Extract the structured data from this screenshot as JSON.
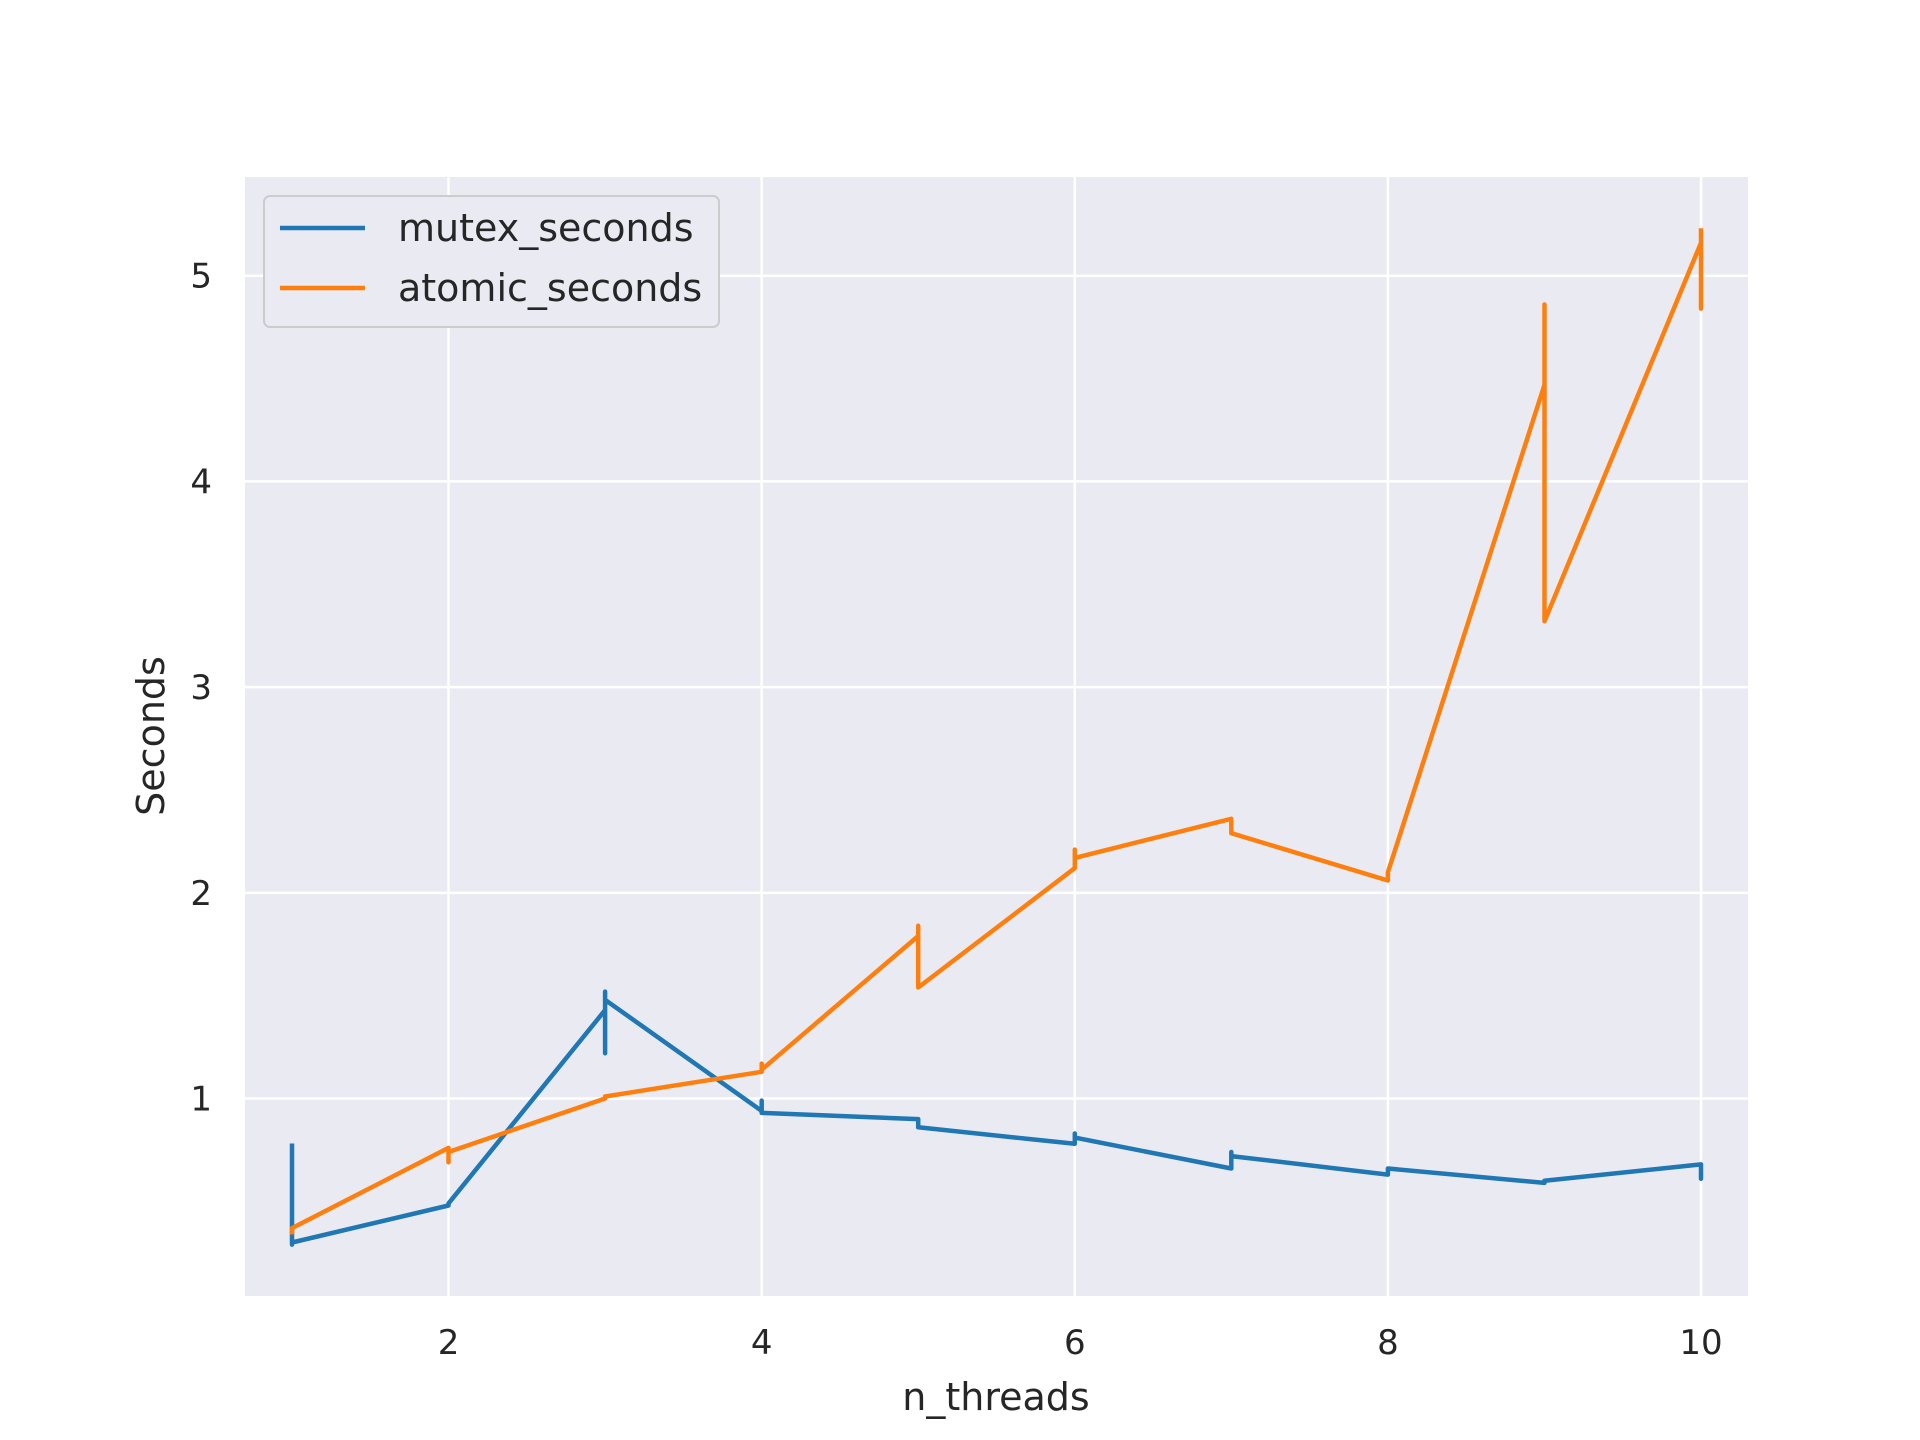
{
  "chart_data": {
    "type": "line",
    "title": "",
    "xlabel": "n_threads",
    "ylabel": "Seconds",
    "xlim": [
      0.7,
      10.3
    ],
    "ylim": [
      0.04,
      5.48
    ],
    "xticks": [
      2,
      4,
      6,
      8,
      10
    ],
    "yticks": [
      1,
      2,
      3,
      4,
      5
    ],
    "grid": true,
    "legend_position": "top-left",
    "series": [
      {
        "name": "mutex_seconds",
        "color": "#1f77b4",
        "x": [
          1,
          1,
          1,
          2,
          2,
          3,
          3,
          3,
          3,
          4,
          4,
          4,
          5,
          5,
          6,
          6,
          6,
          7,
          7,
          7,
          8,
          8,
          9,
          9,
          10,
          10,
          10
        ],
        "y": [
          0.77,
          0.29,
          0.3,
          0.48,
          0.49,
          1.43,
          1.22,
          1.52,
          1.48,
          0.94,
          0.99,
          0.93,
          0.9,
          0.86,
          0.78,
          0.83,
          0.81,
          0.66,
          0.74,
          0.72,
          0.63,
          0.66,
          0.59,
          0.6,
          0.68,
          0.61,
          0.66
        ]
      },
      {
        "name": "atomic_seconds",
        "color": "#ff7f0e",
        "x": [
          1,
          1,
          2,
          2,
          2,
          3,
          3,
          4,
          4,
          4,
          5,
          5,
          5,
          6,
          6,
          6,
          7,
          7,
          8,
          8,
          9,
          9,
          9,
          10,
          10,
          10
        ],
        "y": [
          0.35,
          0.37,
          0.76,
          0.69,
          0.74,
          1.0,
          1.01,
          1.13,
          1.17,
          1.14,
          1.79,
          1.84,
          1.54,
          2.12,
          2.21,
          2.17,
          2.36,
          2.29,
          2.06,
          2.1,
          4.47,
          4.86,
          3.32,
          5.16,
          4.84,
          5.22
        ]
      }
    ]
  }
}
